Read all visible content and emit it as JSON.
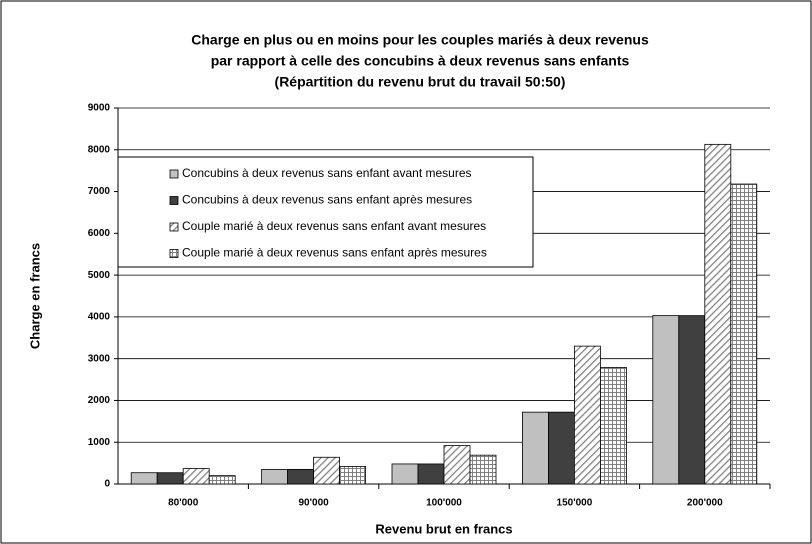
{
  "chart_data": {
    "type": "bar",
    "title": [
      "Charge en plus ou en moins pour les couples mariés à deux revenus",
      "par rapport à celle des concubins à deux revenus sans enfants",
      "(Répartition du revenu brut du travail 50:50)"
    ],
    "y_label": "Charge en francs",
    "x_label": "Revenu brut en francs",
    "categories": [
      "80'000",
      "90'000",
      "100'000",
      "150'000",
      "200'000"
    ],
    "series": [
      {
        "name": "Concubins à deux revenus sans enfant avant mesures",
        "color": "#c0c0c0",
        "values": [
          270,
          350,
          480,
          1720,
          4030
        ]
      },
      {
        "name": "Concubins à deux revenus sans enfant après mesures",
        "color": "#404040",
        "values": [
          270,
          350,
          480,
          1720,
          4030
        ]
      },
      {
        "name": "Couple marié à deux revenus sans enfant avant mesures",
        "color": "#808080",
        "pattern": "diagonal",
        "values": [
          370,
          640,
          920,
          3300,
          8130
        ]
      },
      {
        "name": "Couple marié à deux revenus sans enfant après mesures",
        "color": "#808080",
        "pattern": "grid",
        "values": [
          200,
          420,
          690,
          2790,
          7180
        ]
      }
    ],
    "ylim": [
      0,
      9000
    ],
    "yticks": [
      0,
      1000,
      2000,
      3000,
      4000,
      5000,
      6000,
      7000,
      8000,
      9000
    ],
    "grid": true
  }
}
